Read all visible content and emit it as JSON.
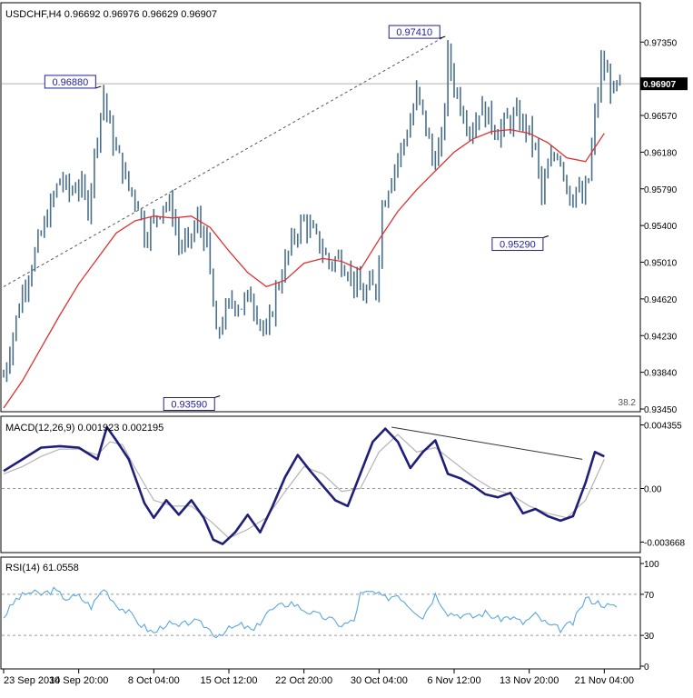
{
  "chart_data": [
    {
      "type": "bar",
      "title": "USDCHF,H4  0.96692 0.96976 0.96629 0.96907",
      "yticks": [
        "0.97350",
        "0.96570",
        "0.96180",
        "0.95790",
        "0.95400",
        "0.95010",
        "0.94620",
        "0.94230",
        "0.93840",
        "0.93450"
      ],
      "ylim": [
        0.9345,
        0.9772
      ],
      "last_price": "0.96907",
      "last_price_value": 0.96907,
      "corner_label": "38.2",
      "annotations": [
        {
          "label": "0.96880",
          "x": 30,
          "y": 0.9688
        },
        {
          "label": "0.97410",
          "x": 140,
          "y": 0.9741
        },
        {
          "label": "0.93590",
          "x": 68,
          "y": 0.9359
        },
        {
          "label": "0.95290",
          "x": 173,
          "y": 0.9529
        }
      ],
      "trendline": [
        {
          "x": 0,
          "y": 0.9475
        },
        {
          "x": 141,
          "y": 0.9741
        }
      ],
      "ma": [
        [
          0,
          0.9346
        ],
        [
          6,
          0.9375
        ],
        [
          12,
          0.941
        ],
        [
          18,
          0.9445
        ],
        [
          24,
          0.9478
        ],
        [
          30,
          0.9505
        ],
        [
          36,
          0.9532
        ],
        [
          42,
          0.9545
        ],
        [
          48,
          0.955
        ],
        [
          54,
          0.9548
        ],
        [
          60,
          0.955
        ],
        [
          66,
          0.9538
        ],
        [
          72,
          0.9513
        ],
        [
          78,
          0.949
        ],
        [
          84,
          0.9475
        ],
        [
          90,
          0.9482
        ],
        [
          96,
          0.95
        ],
        [
          102,
          0.9505
        ],
        [
          108,
          0.9502
        ],
        [
          114,
          0.9493
        ],
        [
          120,
          0.9525
        ],
        [
          126,
          0.9555
        ],
        [
          132,
          0.9578
        ],
        [
          138,
          0.9598
        ],
        [
          144,
          0.9618
        ],
        [
          150,
          0.9632
        ],
        [
          156,
          0.964
        ],
        [
          162,
          0.9642
        ],
        [
          168,
          0.9638
        ],
        [
          174,
          0.9628
        ],
        [
          180,
          0.9612
        ],
        [
          186,
          0.9608
        ],
        [
          192,
          0.9638
        ]
      ],
      "closes": [
        [
          0,
          0.938
        ],
        [
          3,
          0.9425
        ],
        [
          6,
          0.947
        ],
        [
          9,
          0.95
        ],
        [
          12,
          0.953
        ],
        [
          15,
          0.956
        ],
        [
          18,
          0.959
        ],
        [
          21,
          0.9575
        ],
        [
          24,
          0.9585
        ],
        [
          27,
          0.956
        ],
        [
          30,
          0.964
        ],
        [
          32,
          0.968
        ],
        [
          34,
          0.964
        ],
        [
          37,
          0.961
        ],
        [
          40,
          0.958
        ],
        [
          43,
          0.9565
        ],
        [
          45,
          0.953
        ],
        [
          48,
          0.9545
        ],
        [
          51,
          0.9565
        ],
        [
          54,
          0.9555
        ],
        [
          56,
          0.952
        ],
        [
          59,
          0.952
        ],
        [
          62,
          0.9545
        ],
        [
          65,
          0.952
        ],
        [
          68,
          0.942
        ],
        [
          70,
          0.944
        ],
        [
          73,
          0.946
        ],
        [
          76,
          0.9455
        ],
        [
          79,
          0.9465
        ],
        [
          82,
          0.944
        ],
        [
          84,
          0.942
        ],
        [
          87,
          0.947
        ],
        [
          90,
          0.95
        ],
        [
          93,
          0.953
        ],
        [
          96,
          0.9545
        ],
        [
          98,
          0.9535
        ],
        [
          101,
          0.952
        ],
        [
          104,
          0.95
        ],
        [
          107,
          0.9505
        ],
        [
          110,
          0.9495
        ],
        [
          112,
          0.948
        ],
        [
          115,
          0.9465
        ],
        [
          117,
          0.9475
        ],
        [
          119,
          0.947
        ],
        [
          121,
          0.956
        ],
        [
          124,
          0.9595
        ],
        [
          127,
          0.962
        ],
        [
          130,
          0.965
        ],
        [
          132,
          0.968
        ],
        [
          135,
          0.9645
        ],
        [
          137,
          0.961
        ],
        [
          140,
          0.9625
        ],
        [
          142,
          0.972
        ],
        [
          144,
          0.969
        ],
        [
          147,
          0.966
        ],
        [
          150,
          0.964
        ],
        [
          152,
          0.9665
        ],
        [
          155,
          0.9655
        ],
        [
          158,
          0.964
        ],
        [
          161,
          0.965
        ],
        [
          164,
          0.9655
        ],
        [
          167,
          0.9645
        ],
        [
          170,
          0.962
        ],
        [
          172,
          0.957
        ],
        [
          174,
          0.96
        ],
        [
          177,
          0.962
        ],
        [
          179,
          0.96
        ],
        [
          181,
          0.957
        ],
        [
          183,
          0.958
        ],
        [
          185,
          0.9565
        ],
        [
          187,
          0.959
        ],
        [
          189,
          0.9655
        ],
        [
          191,
          0.971
        ],
        [
          193,
          0.97
        ],
        [
          195,
          0.968
        ],
        [
          197,
          0.969
        ]
      ]
    },
    {
      "type": "line",
      "title": "MACD(12,26,9) 0.001923 0.002195",
      "yticks": [
        "0.004355",
        "0.00",
        "-0.003668"
      ],
      "ylim": [
        -0.0042,
        0.0047
      ],
      "macd": [
        [
          0,
          0.0012
        ],
        [
          6,
          0.002
        ],
        [
          12,
          0.0028
        ],
        [
          18,
          0.0029
        ],
        [
          24,
          0.0028
        ],
        [
          30,
          0.002
        ],
        [
          33,
          0.0042
        ],
        [
          36,
          0.0033
        ],
        [
          40,
          0.002
        ],
        [
          45,
          -0.001
        ],
        [
          48,
          -0.002
        ],
        [
          52,
          -0.0008
        ],
        [
          56,
          -0.0018
        ],
        [
          60,
          -0.0008
        ],
        [
          64,
          -0.002
        ],
        [
          67,
          -0.0035
        ],
        [
          70,
          -0.0038
        ],
        [
          74,
          -0.003
        ],
        [
          78,
          -0.0018
        ],
        [
          82,
          -0.003
        ],
        [
          86,
          -0.0012
        ],
        [
          90,
          0.0008
        ],
        [
          94,
          0.0023
        ],
        [
          98,
          0.0012
        ],
        [
          102,
          0.0002
        ],
        [
          106,
          -0.0008
        ],
        [
          110,
          -0.0012
        ],
        [
          114,
          0.001
        ],
        [
          118,
          0.0032
        ],
        [
          122,
          0.0041
        ],
        [
          126,
          0.0032
        ],
        [
          130,
          0.0014
        ],
        [
          134,
          0.0025
        ],
        [
          138,
          0.0033
        ],
        [
          142,
          0.001
        ],
        [
          146,
          0.0007
        ],
        [
          150,
          0.0002
        ],
        [
          154,
          -0.0004
        ],
        [
          158,
          -0.0006
        ],
        [
          162,
          -0.0003
        ],
        [
          166,
          -0.0017
        ],
        [
          170,
          -0.0014
        ],
        [
          174,
          -0.0019
        ],
        [
          178,
          -0.0022
        ],
        [
          182,
          -0.0019
        ],
        [
          186,
          0.0004
        ],
        [
          189,
          0.0025
        ],
        [
          192,
          0.0022
        ]
      ],
      "signal": [
        [
          0,
          0.001
        ],
        [
          6,
          0.0015
        ],
        [
          12,
          0.0022
        ],
        [
          18,
          0.0027
        ],
        [
          24,
          0.0027
        ],
        [
          30,
          0.0023
        ],
        [
          34,
          0.0032
        ],
        [
          38,
          0.003
        ],
        [
          42,
          0.0014
        ],
        [
          48,
          -0.0008
        ],
        [
          54,
          -0.0012
        ],
        [
          60,
          -0.0012
        ],
        [
          66,
          -0.0022
        ],
        [
          72,
          -0.0034
        ],
        [
          78,
          -0.0028
        ],
        [
          84,
          -0.002
        ],
        [
          90,
          -0.0002
        ],
        [
          96,
          0.0015
        ],
        [
          102,
          0.001
        ],
        [
          108,
          -0.0002
        ],
        [
          114,
          0.0
        ],
        [
          120,
          0.0025
        ],
        [
          126,
          0.0037
        ],
        [
          132,
          0.0025
        ],
        [
          138,
          0.0028
        ],
        [
          144,
          0.0018
        ],
        [
          150,
          0.0008
        ],
        [
          156,
          0.0
        ],
        [
          162,
          -0.0004
        ],
        [
          168,
          -0.0012
        ],
        [
          174,
          -0.0017
        ],
        [
          180,
          -0.002
        ],
        [
          186,
          -0.0008
        ],
        [
          192,
          0.002
        ]
      ],
      "trendline": [
        {
          "x": 124,
          "y": 0.0042
        },
        {
          "x": 185,
          "y": 0.002
        }
      ]
    },
    {
      "type": "line",
      "title": "RSI(14) 61.0558",
      "yticks": [
        "100",
        "70",
        "30",
        "0"
      ],
      "ylim": [
        0,
        100
      ],
      "levels": [
        70,
        30
      ],
      "rsi": [
        [
          0,
          48
        ],
        [
          4,
          65
        ],
        [
          8,
          72
        ],
        [
          12,
          70
        ],
        [
          16,
          74
        ],
        [
          20,
          66
        ],
        [
          24,
          68
        ],
        [
          28,
          58
        ],
        [
          32,
          76
        ],
        [
          36,
          60
        ],
        [
          40,
          52
        ],
        [
          44,
          40
        ],
        [
          48,
          32
        ],
        [
          52,
          42
        ],
        [
          56,
          38
        ],
        [
          60,
          44
        ],
        [
          64,
          40
        ],
        [
          68,
          30
        ],
        [
          72,
          36
        ],
        [
          76,
          40
        ],
        [
          80,
          34
        ],
        [
          84,
          52
        ],
        [
          88,
          58
        ],
        [
          92,
          62
        ],
        [
          96,
          55
        ],
        [
          100,
          50
        ],
        [
          104,
          46
        ],
        [
          108,
          40
        ],
        [
          112,
          44
        ],
        [
          114,
          70
        ],
        [
          118,
          72
        ],
        [
          122,
          66
        ],
        [
          126,
          70
        ],
        [
          130,
          58
        ],
        [
          134,
          48
        ],
        [
          138,
          70
        ],
        [
          142,
          52
        ],
        [
          146,
          50
        ],
        [
          150,
          48
        ],
        [
          154,
          52
        ],
        [
          158,
          46
        ],
        [
          162,
          48
        ],
        [
          166,
          42
        ],
        [
          170,
          50
        ],
        [
          174,
          40
        ],
        [
          178,
          36
        ],
        [
          182,
          42
        ],
        [
          186,
          66
        ],
        [
          190,
          62
        ],
        [
          194,
          58
        ]
      ]
    }
  ],
  "x_axis": {
    "ticks": [
      {
        "label": "23 Sep 2014",
        "x": 0
      },
      {
        "label": "30 Sep 20:00",
        "x": 24
      },
      {
        "label": "8 Oct 04:00",
        "x": 48
      },
      {
        "label": "15 Oct 12:00",
        "x": 72
      },
      {
        "label": "22 Oct 20:00",
        "x": 96
      },
      {
        "label": "30 Oct 04:00",
        "x": 120
      },
      {
        "label": "6 Nov 12:00",
        "x": 144
      },
      {
        "label": "13 Nov 20:00",
        "x": 168
      },
      {
        "label": "21 Nov 04:00",
        "x": 192
      }
    ],
    "range": [
      0,
      198
    ]
  },
  "colors": {
    "bars": "#4a6f8a",
    "ma": "#e03030",
    "macd": "#1f1f7a",
    "signal": "#b4b4b4",
    "rsi": "#5aa8dc",
    "trend": "#555555",
    "label_border": "#1e1ea0"
  }
}
